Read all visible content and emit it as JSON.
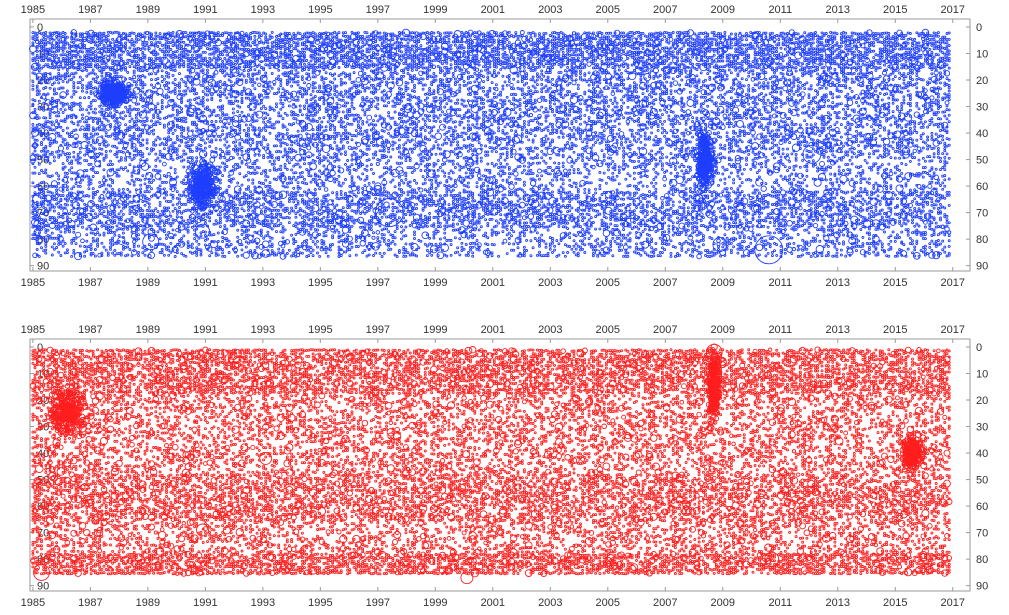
{
  "chart_data": [
    {
      "type": "scatter",
      "color": "#1f3fff",
      "x_ticks": [
        "1985",
        "1987",
        "1989",
        "1991",
        "1993",
        "1995",
        "1997",
        "1999",
        "2001",
        "2003",
        "2005",
        "2007",
        "2009",
        "2011",
        "2013",
        "2015",
        "2017"
      ],
      "y_ticks": [
        "0",
        "10",
        "20",
        "30",
        "40",
        "50",
        "60",
        "70",
        "80",
        "90"
      ],
      "xlim": [
        1984.9,
        2017.6
      ],
      "ylim": [
        -3,
        92
      ],
      "x_ticks_top": true,
      "y_ticks_right": true,
      "marker": "open-circle",
      "x_range_data": [
        1985.0,
        2016.9
      ],
      "y_range_data": [
        1,
        87
      ],
      "dense_bands": [
        {
          "y": [
            2,
            16
          ],
          "density": 0.75
        },
        {
          "y": [
            16,
            50
          ],
          "density": 0.45
        },
        {
          "y": [
            50,
            62
          ],
          "density": 0.35
        },
        {
          "y": [
            62,
            76
          ],
          "density": 0.55
        },
        {
          "y": [
            76,
            87
          ],
          "density": 0.35
        }
      ],
      "hotspots": [
        {
          "x": 1990.9,
          "y": 60,
          "spread": [
            0.6,
            12
          ]
        },
        {
          "x": 2008.4,
          "y": 50,
          "spread": [
            0.4,
            15
          ]
        },
        {
          "x": 1987.8,
          "y": 25,
          "spread": [
            0.7,
            6
          ]
        }
      ],
      "large_circles": [
        {
          "x": 1997.4,
          "y": 70,
          "r": 14
        },
        {
          "x": 2010.6,
          "y": 84,
          "r": 14
        },
        {
          "x": 1985.2,
          "y": 65,
          "r": 6
        },
        {
          "x": 2008.9,
          "y": 82,
          "r": 7
        },
        {
          "x": 2012.1,
          "y": 48,
          "r": 9
        },
        {
          "x": 1989.1,
          "y": 81,
          "r": 8
        },
        {
          "x": 1990.9,
          "y": 77,
          "r": 7
        }
      ]
    },
    {
      "type": "scatter",
      "color": "#ff1e1e",
      "x_ticks": [
        "1985",
        "1987",
        "1989",
        "1991",
        "1993",
        "1995",
        "1997",
        "1999",
        "2001",
        "2003",
        "2005",
        "2007",
        "2009",
        "2011",
        "2013",
        "2015",
        "2017"
      ],
      "y_ticks": [
        "0",
        "10",
        "20",
        "30",
        "40",
        "50",
        "60",
        "70",
        "80",
        "90"
      ],
      "xlim": [
        1984.9,
        2017.6
      ],
      "ylim": [
        -3,
        92
      ],
      "x_ticks_top": true,
      "y_ticks_right": true,
      "marker": "open-circle",
      "x_range_data": [
        1985.0,
        2016.9
      ],
      "y_range_data": [
        1,
        87
      ],
      "dense_bands": [
        {
          "y": [
            1,
            18
          ],
          "density": 0.65
        },
        {
          "y": [
            18,
            48
          ],
          "density": 0.4
        },
        {
          "y": [
            48,
            66
          ],
          "density": 0.55
        },
        {
          "y": [
            66,
            78
          ],
          "density": 0.4
        },
        {
          "y": [
            78,
            86
          ],
          "density": 0.7
        }
      ],
      "hotspots": [
        {
          "x": 2008.7,
          "y": 15,
          "spread": [
            0.25,
            18
          ]
        },
        {
          "x": 1986.2,
          "y": 25,
          "spread": [
            0.8,
            12
          ]
        },
        {
          "x": 2015.6,
          "y": 40,
          "spread": [
            0.5,
            8
          ]
        }
      ],
      "large_circles": [
        {
          "x": 1985.3,
          "y": 85,
          "r": 8
        },
        {
          "x": 1985.4,
          "y": 52,
          "r": 6
        },
        {
          "x": 1990.9,
          "y": 69,
          "r": 6
        },
        {
          "x": 1993.1,
          "y": 42,
          "r": 6
        },
        {
          "x": 1994.5,
          "y": 77,
          "r": 6
        },
        {
          "x": 2000.1,
          "y": 87,
          "r": 6
        },
        {
          "x": 2008.7,
          "y": 2,
          "r": 8
        },
        {
          "x": 2010.7,
          "y": 80,
          "r": 7
        }
      ]
    }
  ]
}
